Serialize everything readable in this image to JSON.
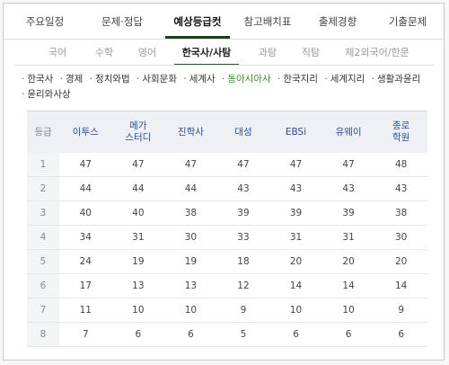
{
  "top_tabs": [
    {
      "label": "주요일정",
      "active": false
    },
    {
      "label": "문제·정답",
      "active": false
    },
    {
      "label": "예상등급컷",
      "active": true
    },
    {
      "label": "참고배치표",
      "active": false
    },
    {
      "label": "출제경향",
      "active": false
    },
    {
      "label": "기출문제",
      "active": false
    }
  ],
  "sub_tabs": [
    {
      "label": "국어",
      "active": false
    },
    {
      "label": "수학",
      "active": false
    },
    {
      "label": "영어",
      "active": false
    },
    {
      "label": "한국사/사탐",
      "active": true
    },
    {
      "label": "과탐",
      "active": false
    },
    {
      "label": "직탐",
      "active": false
    },
    {
      "label": "제2외국어/한문",
      "active": false
    }
  ],
  "subjects": [
    {
      "label": "한국사",
      "active": false
    },
    {
      "label": "경제",
      "active": false
    },
    {
      "label": "정치와법",
      "active": false
    },
    {
      "label": "사회문화",
      "active": false
    },
    {
      "label": "세계사",
      "active": false
    },
    {
      "label": "동아시아사",
      "active": true
    },
    {
      "label": "한국지리",
      "active": false
    },
    {
      "label": "세계지리",
      "active": false
    },
    {
      "label": "생활과윤리",
      "active": false
    },
    {
      "label": "윤리와사상",
      "active": false
    }
  ],
  "colors": {
    "active_subject": "#3a8a2a",
    "header_text": "#2b4d9b",
    "tab_underline": "#1f3c1f"
  },
  "table": {
    "headers": [
      "등급",
      "이투스",
      "메가\n스터디",
      "진학사",
      "대성",
      "EBSi",
      "유웨이",
      "종로\n학원"
    ],
    "rows": [
      [
        "1",
        "47",
        "47",
        "47",
        "47",
        "47",
        "47",
        "48"
      ],
      [
        "2",
        "44",
        "44",
        "44",
        "43",
        "43",
        "43",
        "43"
      ],
      [
        "3",
        "40",
        "40",
        "38",
        "39",
        "39",
        "39",
        "38"
      ],
      [
        "4",
        "34",
        "31",
        "30",
        "33",
        "31",
        "31",
        "30"
      ],
      [
        "5",
        "24",
        "19",
        "19",
        "18",
        "20",
        "20",
        "20"
      ],
      [
        "6",
        "17",
        "13",
        "13",
        "12",
        "14",
        "14",
        "14"
      ],
      [
        "7",
        "11",
        "10",
        "10",
        "9",
        "10",
        "10",
        "9"
      ],
      [
        "8",
        "7",
        "6",
        "6",
        "5",
        "6",
        "6",
        "6"
      ]
    ]
  }
}
